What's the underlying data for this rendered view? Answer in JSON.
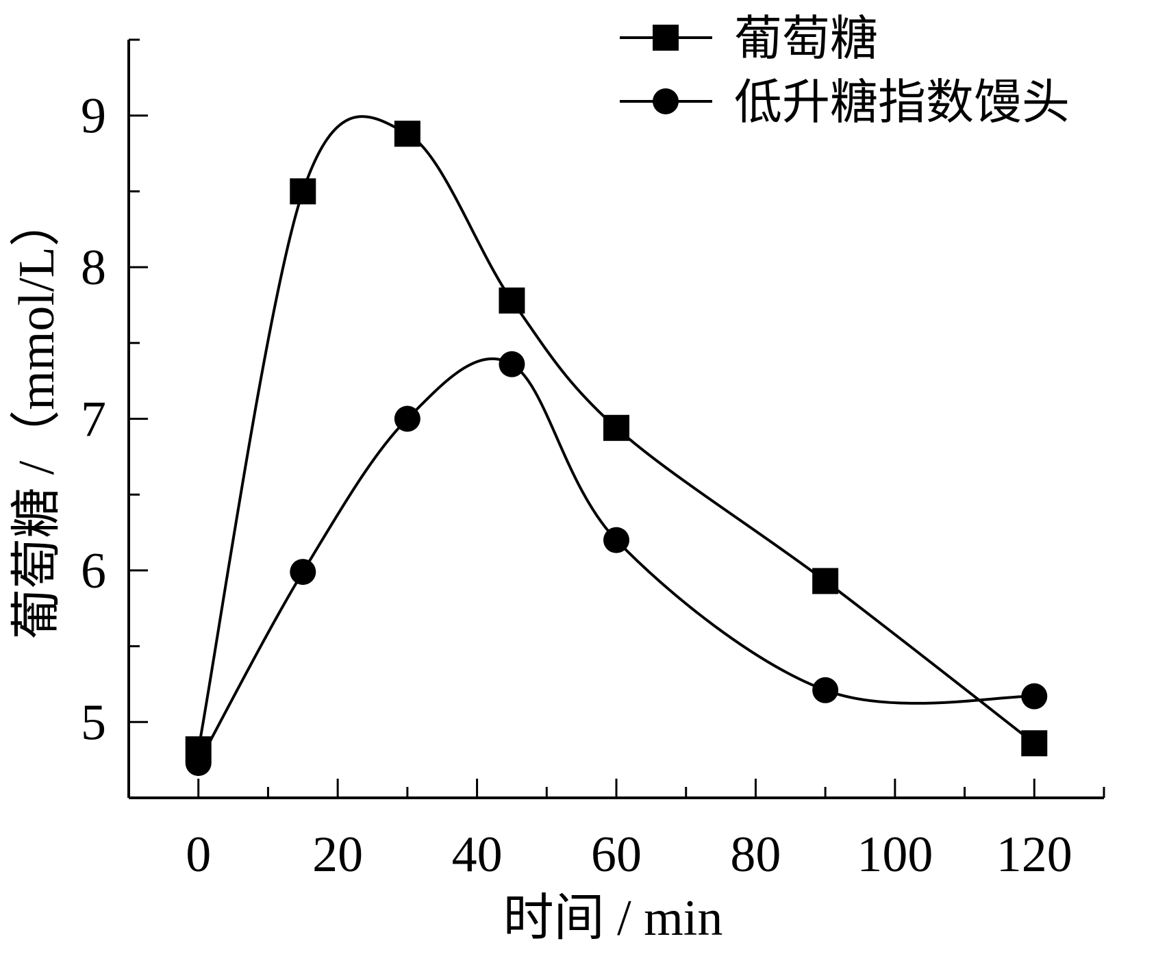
{
  "chart_data": {
    "type": "line",
    "title": "",
    "xlabel": "时间 / min",
    "ylabel": "葡萄糖 /（mmol/L）",
    "xlim": [
      -10,
      130
    ],
    "ylim": [
      4.5,
      9.5
    ],
    "x_ticks": [
      0,
      20,
      40,
      60,
      80,
      100,
      120
    ],
    "y_ticks": [
      5,
      6,
      7,
      8,
      9
    ],
    "grid": false,
    "legend_position": "top-right",
    "series": [
      {
        "name": "葡萄糖",
        "marker": "square",
        "x": [
          0,
          15,
          30,
          45,
          60,
          90,
          120
        ],
        "y": [
          4.82,
          8.5,
          8.88,
          7.78,
          6.94,
          5.93,
          4.86
        ]
      },
      {
        "name": "低升糖指数馒头",
        "marker": "circle",
        "x": [
          0,
          15,
          30,
          45,
          60,
          90,
          120
        ],
        "y": [
          4.73,
          5.99,
          7.0,
          7.36,
          6.2,
          5.21,
          5.17
        ]
      }
    ]
  }
}
